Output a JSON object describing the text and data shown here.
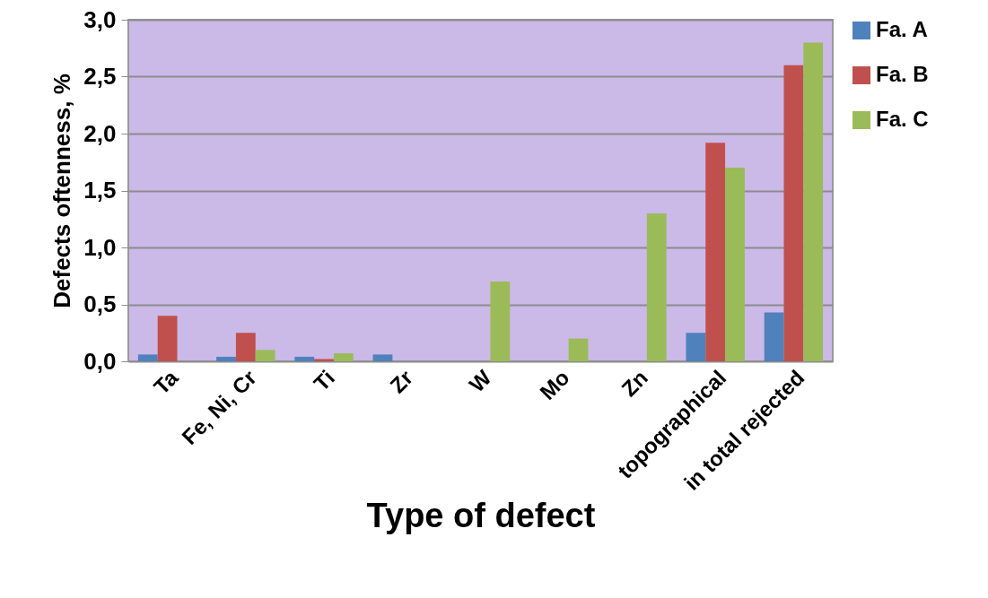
{
  "chart_data": {
    "type": "bar",
    "xlabel": "Type of defect",
    "ylabel": "Defects oftenness, %",
    "categories": [
      "Ta",
      "Fe, Ni, Cr",
      "Ti",
      "Zr",
      "W",
      "Mo",
      "Zn",
      "topographical",
      "in total rejected"
    ],
    "series": [
      {
        "name": "Fa. A",
        "color": "#4f81bd",
        "values": [
          0.06,
          0.04,
          0.04,
          0.06,
          null,
          null,
          null,
          0.25,
          0.43
        ]
      },
      {
        "name": "Fa. B",
        "color": "#c0504d",
        "values": [
          0.4,
          0.25,
          0.02,
          null,
          null,
          null,
          null,
          1.92,
          2.6
        ]
      },
      {
        "name": "Fa. C",
        "color": "#9bbb59",
        "values": [
          null,
          0.1,
          0.07,
          null,
          0.7,
          0.2,
          1.3,
          1.7,
          2.8
        ]
      }
    ],
    "ylim": [
      0,
      3
    ],
    "yticks": [
      {
        "value": 0,
        "label": "0,0"
      },
      {
        "value": 0.5,
        "label": "0,5"
      },
      {
        "value": 1,
        "label": "1,0"
      },
      {
        "value": 1.5,
        "label": "1,5"
      },
      {
        "value": 2,
        "label": "2,0"
      },
      {
        "value": 2.5,
        "label": "2,5"
      },
      {
        "value": 3,
        "label": "3,0"
      }
    ],
    "grid": "y",
    "legend": "right"
  }
}
